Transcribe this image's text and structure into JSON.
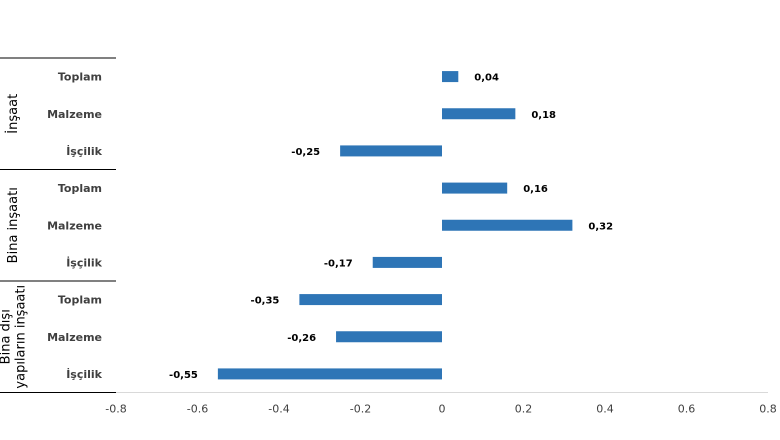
{
  "chart_data": {
    "type": "bar",
    "orientation": "horizontal",
    "xlim": [
      -0.8,
      0.8
    ],
    "xticks": [
      "-0.8",
      "-0.6",
      "-0.4",
      "-0.2",
      "0",
      "0.2",
      "0.4",
      "0.6",
      "0.8"
    ],
    "xtick_values": [
      -0.8,
      -0.6,
      -0.4,
      -0.2,
      0,
      0.2,
      0.4,
      0.6,
      0.8
    ],
    "grid": false,
    "bar_color": "#2e75b6",
    "groups": [
      {
        "name_lines": [
          "İnşaat"
        ],
        "items": [
          {
            "label": "Toplam",
            "value": 0.04,
            "value_label": "0,04"
          },
          {
            "label": "Malzeme",
            "value": 0.18,
            "value_label": "0,18"
          },
          {
            "label": "İşçilik",
            "value": -0.25,
            "value_label": "-0,25"
          }
        ]
      },
      {
        "name_lines": [
          "Bina inşaatı"
        ],
        "items": [
          {
            "label": "Toplam",
            "value": 0.16,
            "value_label": "0,16"
          },
          {
            "label": "Malzeme",
            "value": 0.32,
            "value_label": "0,32"
          },
          {
            "label": "İşçilik",
            "value": -0.17,
            "value_label": "-0,17"
          }
        ]
      },
      {
        "name_lines": [
          "Bina dışı",
          "yapıların inşaatı"
        ],
        "items": [
          {
            "label": "Toplam",
            "value": -0.35,
            "value_label": "-0,35"
          },
          {
            "label": "Malzeme",
            "value": -0.26,
            "value_label": "-0,26"
          },
          {
            "label": "İşçilik",
            "value": -0.55,
            "value_label": "-0,55"
          }
        ]
      }
    ]
  }
}
